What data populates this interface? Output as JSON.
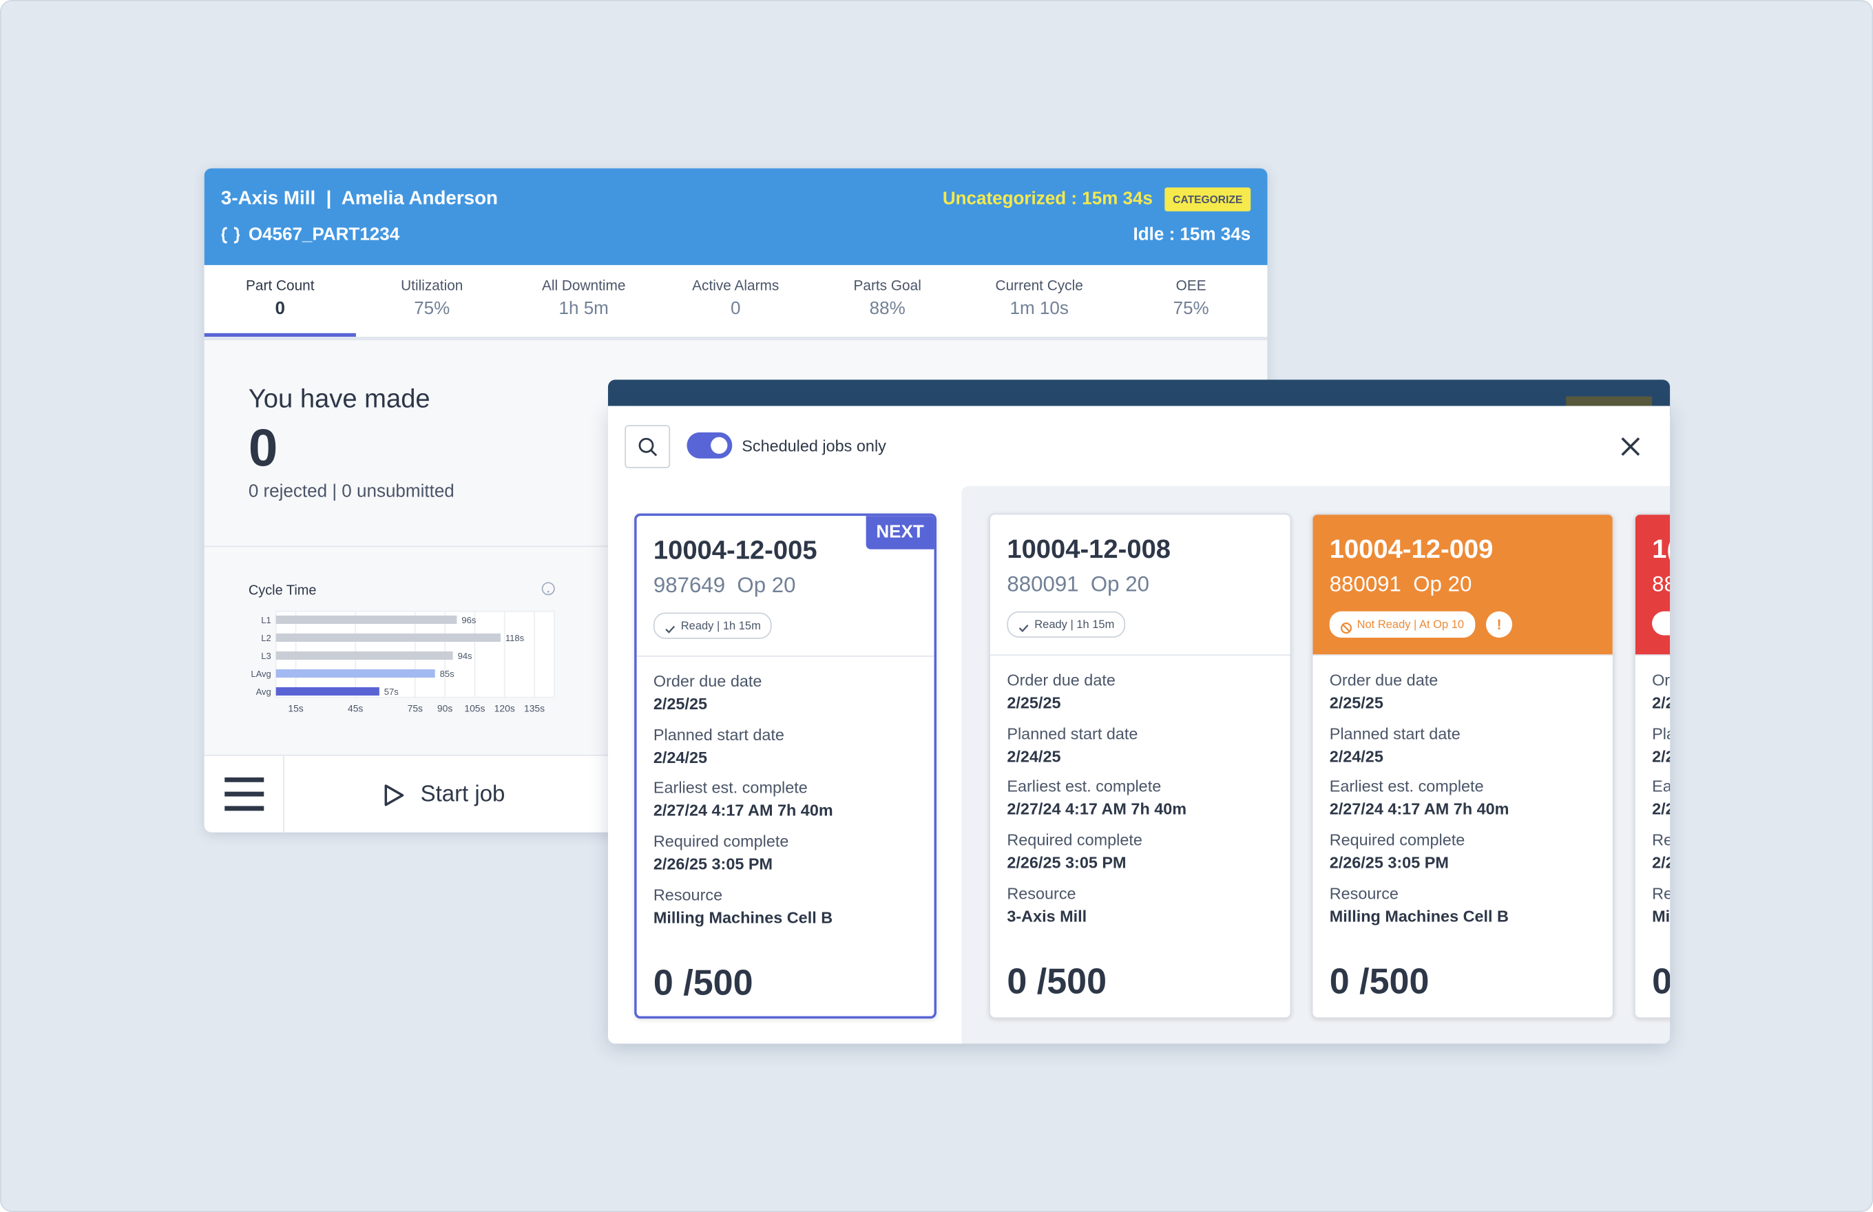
{
  "machine": {
    "title": "3-Axis Mill  |  Amelia Anderson",
    "program": "O4567_PART1234",
    "uncategorized": "Uncategorized : 15m 34s",
    "categorize_button": "CATEGORIZE",
    "idle": "Idle : 15m 34s"
  },
  "metrics": [
    {
      "label": "Part Count",
      "value": "0"
    },
    {
      "label": "Utilization",
      "value": "75%"
    },
    {
      "label": "All Downtime",
      "value": "1h 5m"
    },
    {
      "label": "Active Alarms",
      "value": "0"
    },
    {
      "label": "Parts Goal",
      "value": "88%"
    },
    {
      "label": "Current Cycle",
      "value": "1m 10s"
    },
    {
      "label": "OEE",
      "value": "75%"
    }
  ],
  "summary": {
    "heading": "You have made",
    "count": "0",
    "detail": "0 rejected | 0 unsubmitted"
  },
  "chart_data": {
    "type": "bar",
    "orientation": "horizontal",
    "title": "Cycle Time",
    "categories": [
      "L1",
      "L2",
      "L3",
      "LAvg",
      "Avg"
    ],
    "values": [
      96,
      118,
      94,
      85,
      57
    ],
    "value_labels": [
      "96s",
      "118s",
      "94s",
      "85s",
      "57s"
    ],
    "colors": [
      "#c9ced6",
      "#c9ced6",
      "#c9ced6",
      "#a3b9f2",
      "#5a63d4"
    ],
    "xlim": [
      5,
      145
    ],
    "xticks": [
      {
        "value": 15,
        "label": "15s"
      },
      {
        "value": 45,
        "label": "45s"
      },
      {
        "value": 75,
        "label": "75s"
      },
      {
        "value": 90,
        "label": "90s"
      },
      {
        "value": 105,
        "label": "105s"
      },
      {
        "value": 120,
        "label": "120s"
      },
      {
        "value": 135,
        "label": "135s"
      }
    ],
    "grid": true
  },
  "footer": {
    "start_job": "Start job"
  },
  "jobs_panel": {
    "toggle_label": "Scheduled jobs only",
    "jobs": [
      {
        "id": "10004-12-005",
        "part": "987649  Op 20",
        "status": "Ready | 1h 15m",
        "badge": "NEXT",
        "accent": "#5865d6",
        "state": "ready",
        "fields": [
          {
            "label": "Order due date",
            "value": "2/25/25"
          },
          {
            "label": "Planned start date",
            "value": "2/24/25"
          },
          {
            "label": "Earliest est. complete",
            "value": "2/27/24 4:17 AM 7h 40m"
          },
          {
            "label": "Required complete",
            "value": "2/26/25 3:05 PM"
          },
          {
            "label": "Resource",
            "value": "Milling Machines Cell B"
          }
        ],
        "quantity": "0 /500"
      },
      {
        "id": "10004-12-008",
        "part": "880091  Op 20",
        "status": "Ready | 1h 15m",
        "state": "ready",
        "fields": [
          {
            "label": "Order due date",
            "value": "2/25/25"
          },
          {
            "label": "Planned start date",
            "value": "2/24/25"
          },
          {
            "label": "Earliest est. complete",
            "value": "2/27/24 4:17 AM 7h 40m"
          },
          {
            "label": "Required complete",
            "value": "2/26/25 3:05 PM"
          },
          {
            "label": "Resource",
            "value": "3-Axis Mill"
          }
        ],
        "quantity": "0 /500"
      },
      {
        "id": "10004-12-009",
        "part": "880091  Op 20",
        "status": "Not Ready | At Op 10",
        "alert": "!",
        "accent": "#ed8a36",
        "state": "not_ready",
        "fields": [
          {
            "label": "Order due date",
            "value": "2/25/25"
          },
          {
            "label": "Planned start date",
            "value": "2/24/25"
          },
          {
            "label": "Earliest est. complete",
            "value": "2/27/24 4:17 AM 7h 40m"
          },
          {
            "label": "Required complete",
            "value": "2/26/25 3:05 PM"
          },
          {
            "label": "Resource",
            "value": "Milling Machines Cell B"
          }
        ],
        "quantity": "0 /500"
      },
      {
        "id": "1(",
        "part": "88",
        "accent": "#e53e3e",
        "state": "late",
        "fields": [
          {
            "label": "Or",
            "value": "2/2"
          },
          {
            "label": "Pla",
            "value": "2/2"
          },
          {
            "label": "Ea",
            "value": "2/2"
          },
          {
            "label": "Re",
            "value": "2/2"
          },
          {
            "label": "Re",
            "value": "Mi"
          }
        ],
        "quantity": "0"
      }
    ]
  }
}
